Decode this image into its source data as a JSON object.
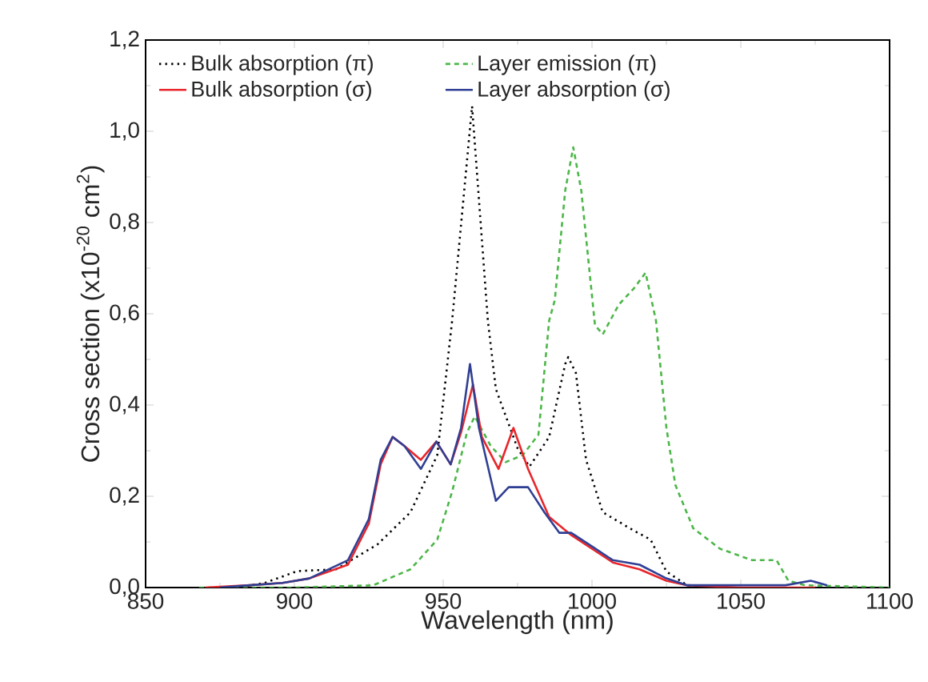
{
  "chart_data": {
    "type": "line",
    "xlabel": "Wavelength (nm)",
    "ylabel": "Cross section (x10$^{-20}$ cm$^{2}$)",
    "xlim": [
      850,
      1100
    ],
    "ylim": [
      0,
      1.2
    ],
    "xticks": [
      850,
      900,
      950,
      1000,
      1050,
      1100
    ],
    "yticks": [
      {
        "value": 0,
        "label": "0,0"
      },
      {
        "value": 0.2,
        "label": "0,2"
      },
      {
        "value": 0.4,
        "label": "0,4"
      },
      {
        "value": 0.6,
        "label": "0,6"
      },
      {
        "value": 0.8,
        "label": "0,8"
      },
      {
        "value": 1.0,
        "label": "1,0"
      },
      {
        "value": 1.2,
        "label": "1,2"
      }
    ],
    "legend": "top",
    "grid": false,
    "series": [
      {
        "name": "Bulk absorption (π)",
        "color": "#000000",
        "line_style": "dotted",
        "x": [
          880,
          890,
          901,
          914,
          928,
          939,
          948,
          953,
          959.7,
          965,
          967.7,
          975,
          979,
          985.6,
          991,
          992,
          994.6,
          998,
          1003.6,
          1014,
          1019.7,
          1025,
          1032,
          1040
        ],
        "values": [
          0,
          0.01,
          0.036,
          0.04,
          0.095,
          0.165,
          0.29,
          0.585,
          1.055,
          0.585,
          0.435,
          0.305,
          0.265,
          0.33,
          0.49,
          0.505,
          0.47,
          0.28,
          0.165,
          0.125,
          0.105,
          0.035,
          0.005,
          0
        ]
      },
      {
        "name": "Layer emission (π)",
        "color": "#4cb648",
        "line_style": "dashed",
        "x": [
          868,
          900,
          926.5,
          939,
          948,
          953,
          958,
          960.6,
          966,
          971,
          976.7,
          982,
          985.6,
          987.5,
          991,
          993.7,
          996.4,
          1001,
          1003.6,
          1009,
          1014,
          1018,
          1021.5,
          1025,
          1028,
          1034,
          1043,
          1053.8,
          1062,
          1066,
          1071.5,
          1100
        ],
        "values": [
          0,
          0,
          0.005,
          0.04,
          0.105,
          0.21,
          0.34,
          0.375,
          0.31,
          0.275,
          0.29,
          0.335,
          0.585,
          0.63,
          0.87,
          0.965,
          0.87,
          0.575,
          0.555,
          0.62,
          0.655,
          0.69,
          0.585,
          0.35,
          0.225,
          0.13,
          0.085,
          0.06,
          0.06,
          0.015,
          0.005,
          0
        ]
      },
      {
        "name": "Bulk absorption (σ)",
        "color": "#e8262b",
        "line_style": "solid",
        "x": [
          870,
          885,
          896,
          905,
          918,
          925,
          929,
          933,
          937,
          942.5,
          947.7,
          952.5,
          956,
          960,
          963,
          968.6,
          973.6,
          978.5,
          985.6,
          993,
          1000,
          1007,
          1016,
          1025,
          1032,
          1050,
          1075
        ],
        "values": [
          0,
          0.005,
          0.01,
          0.02,
          0.05,
          0.14,
          0.27,
          0.33,
          0.31,
          0.28,
          0.32,
          0.27,
          0.34,
          0.445,
          0.33,
          0.26,
          0.35,
          0.26,
          0.155,
          0.115,
          0.085,
          0.055,
          0.04,
          0.015,
          0.005,
          0,
          0
        ]
      },
      {
        "name": "Layer absorption (σ)",
        "color": "#2f3f93",
        "line_style": "solid",
        "x": [
          875,
          885,
          896,
          905,
          918,
          925,
          929,
          933,
          937,
          942.5,
          947.7,
          952.5,
          956,
          959,
          962,
          967.7,
          972,
          978.5,
          984,
          989,
          993,
          1000,
          1007,
          1016,
          1025,
          1032,
          1050,
          1065,
          1073.5,
          1079
        ],
        "values": [
          0,
          0.005,
          0.01,
          0.02,
          0.06,
          0.15,
          0.28,
          0.33,
          0.31,
          0.26,
          0.32,
          0.27,
          0.35,
          0.49,
          0.35,
          0.19,
          0.22,
          0.22,
          0.165,
          0.12,
          0.12,
          0.09,
          0.06,
          0.05,
          0.02,
          0.005,
          0.005,
          0.005,
          0.015,
          0.005
        ]
      }
    ]
  }
}
